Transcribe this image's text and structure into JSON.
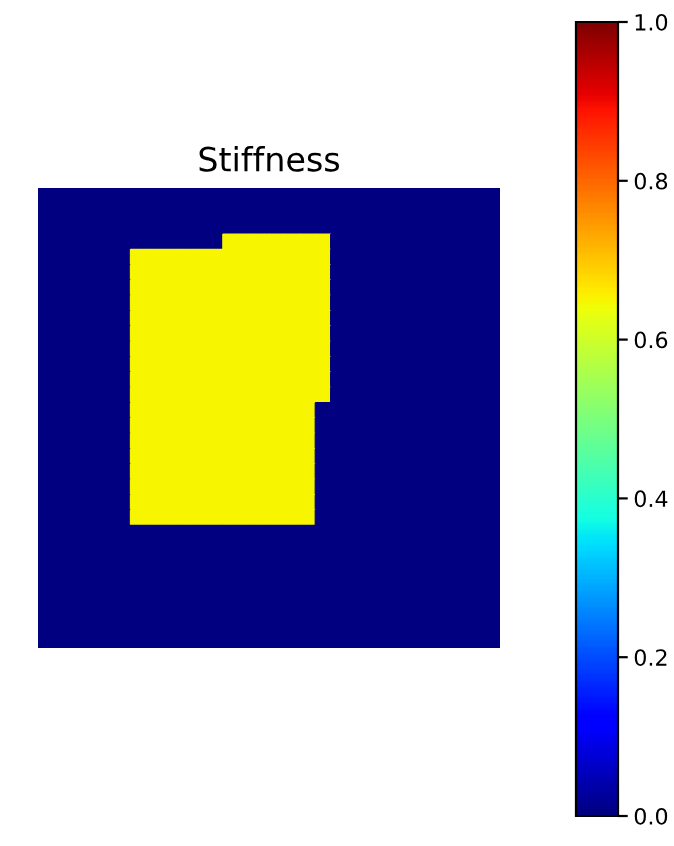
{
  "chart_data": {
    "type": "heatmap",
    "title": "Stiffness",
    "categories": [
      null,
      null,
      null,
      null,
      null,
      null,
      null,
      null,
      null,
      null,
      null,
      null,
      null,
      null,
      null,
      null,
      null,
      null,
      null,
      null,
      null,
      null,
      null,
      null,
      null,
      null,
      null,
      null,
      null,
      null
    ],
    "y_categories": [
      null,
      null,
      null,
      null,
      null,
      null,
      null,
      null,
      null,
      null,
      null,
      null,
      null,
      null,
      null,
      null,
      null,
      null,
      null,
      null,
      null,
      null,
      null,
      null,
      null,
      null,
      null,
      null,
      null,
      null
    ],
    "cells": [
      [
        0,
        0,
        0,
        0,
        0,
        0,
        0,
        0,
        0,
        0,
        0,
        0,
        0,
        0,
        0,
        0,
        0,
        0,
        0,
        0,
        0,
        0,
        0,
        0,
        0,
        0,
        0,
        0,
        0,
        0
      ],
      [
        0,
        0,
        0,
        0,
        0,
        0,
        0,
        0,
        0,
        0,
        0,
        0,
        0,
        0,
        0,
        0,
        0,
        0,
        0,
        0,
        0,
        0,
        0,
        0,
        0,
        0,
        0,
        0,
        0,
        0
      ],
      [
        0,
        0,
        0,
        0,
        0,
        0,
        0,
        0,
        0,
        0,
        0,
        0,
        0,
        0,
        0,
        0,
        0,
        0,
        0,
        0,
        0,
        0,
        0,
        0,
        0,
        0,
        0,
        0,
        0,
        0
      ],
      [
        0,
        0,
        0,
        0,
        0,
        0,
        0,
        0,
        0,
        0,
        0,
        0,
        0.65,
        0.65,
        0.65,
        0.65,
        0.65,
        0.65,
        0.65,
        0,
        0,
        0,
        0,
        0,
        0,
        0,
        0,
        0,
        0,
        0
      ],
      [
        0,
        0,
        0,
        0,
        0,
        0,
        0.65,
        0.65,
        0.65,
        0.65,
        0.65,
        0.65,
        0.65,
        0.65,
        0.65,
        0.65,
        0.65,
        0.65,
        0.65,
        0,
        0,
        0,
        0,
        0,
        0,
        0,
        0,
        0,
        0,
        0
      ],
      [
        0,
        0,
        0,
        0,
        0,
        0,
        0.65,
        0.65,
        0.65,
        0.65,
        0.65,
        0.65,
        0.65,
        0.65,
        0.65,
        0.65,
        0.65,
        0.65,
        0.65,
        0,
        0,
        0,
        0,
        0,
        0,
        0,
        0,
        0,
        0,
        0
      ],
      [
        0,
        0,
        0,
        0,
        0,
        0,
        0.65,
        0.65,
        0.65,
        0.65,
        0.65,
        0.65,
        0.65,
        0.65,
        0.65,
        0.65,
        0.65,
        0.65,
        0.65,
        0,
        0,
        0,
        0,
        0,
        0,
        0,
        0,
        0,
        0,
        0
      ],
      [
        0,
        0,
        0,
        0,
        0,
        0,
        0.65,
        0.65,
        0.65,
        0.65,
        0.65,
        0.65,
        0.65,
        0.65,
        0.65,
        0.65,
        0.65,
        0.65,
        0.65,
        0,
        0,
        0,
        0,
        0,
        0,
        0,
        0,
        0,
        0,
        0
      ],
      [
        0,
        0,
        0,
        0,
        0,
        0,
        0.65,
        0.65,
        0.65,
        0.65,
        0.65,
        0.65,
        0.65,
        0.65,
        0.65,
        0.65,
        0.65,
        0.65,
        0.65,
        0,
        0,
        0,
        0,
        0,
        0,
        0,
        0,
        0,
        0,
        0
      ],
      [
        0,
        0,
        0,
        0,
        0,
        0,
        0.65,
        0.65,
        0.65,
        0.65,
        0.65,
        0.65,
        0.65,
        0.65,
        0.65,
        0.65,
        0.65,
        0.65,
        0.65,
        0,
        0,
        0,
        0,
        0,
        0,
        0,
        0,
        0,
        0,
        0
      ],
      [
        0,
        0,
        0,
        0,
        0,
        0,
        0.65,
        0.65,
        0.65,
        0.65,
        0.65,
        0.65,
        0.65,
        0.65,
        0.65,
        0.65,
        0.65,
        0.65,
        0.65,
        0,
        0,
        0,
        0,
        0,
        0,
        0,
        0,
        0,
        0,
        0
      ],
      [
        0,
        0,
        0,
        0,
        0,
        0,
        0.65,
        0.65,
        0.65,
        0.65,
        0.65,
        0.65,
        0.65,
        0.65,
        0.65,
        0.65,
        0.65,
        0.65,
        0.65,
        0,
        0,
        0,
        0,
        0,
        0,
        0,
        0,
        0,
        0,
        0
      ],
      [
        0,
        0,
        0,
        0,
        0,
        0,
        0.65,
        0.65,
        0.65,
        0.65,
        0.65,
        0.65,
        0.65,
        0.65,
        0.65,
        0.65,
        0.65,
        0.65,
        0.65,
        0,
        0,
        0,
        0,
        0,
        0,
        0,
        0,
        0,
        0,
        0
      ],
      [
        0,
        0,
        0,
        0,
        0,
        0,
        0.65,
        0.65,
        0.65,
        0.65,
        0.65,
        0.65,
        0.65,
        0.65,
        0.65,
        0.65,
        0.65,
        0.65,
        0.65,
        0,
        0,
        0,
        0,
        0,
        0,
        0,
        0,
        0,
        0,
        0
      ],
      [
        0,
        0,
        0,
        0,
        0,
        0,
        0.65,
        0.65,
        0.65,
        0.65,
        0.65,
        0.65,
        0.65,
        0.65,
        0.65,
        0.65,
        0.65,
        0.65,
        0,
        0,
        0,
        0,
        0,
        0,
        0,
        0,
        0,
        0,
        0,
        0
      ],
      [
        0,
        0,
        0,
        0,
        0,
        0,
        0.65,
        0.65,
        0.65,
        0.65,
        0.65,
        0.65,
        0.65,
        0.65,
        0.65,
        0.65,
        0.65,
        0.65,
        0,
        0,
        0,
        0,
        0,
        0,
        0,
        0,
        0,
        0,
        0,
        0
      ],
      [
        0,
        0,
        0,
        0,
        0,
        0,
        0.65,
        0.65,
        0.65,
        0.65,
        0.65,
        0.65,
        0.65,
        0.65,
        0.65,
        0.65,
        0.65,
        0.65,
        0,
        0,
        0,
        0,
        0,
        0,
        0,
        0,
        0,
        0,
        0,
        0
      ],
      [
        0,
        0,
        0,
        0,
        0,
        0,
        0.65,
        0.65,
        0.65,
        0.65,
        0.65,
        0.65,
        0.65,
        0.65,
        0.65,
        0.65,
        0.65,
        0.65,
        0,
        0,
        0,
        0,
        0,
        0,
        0,
        0,
        0,
        0,
        0,
        0
      ],
      [
        0,
        0,
        0,
        0,
        0,
        0,
        0.65,
        0.65,
        0.65,
        0.65,
        0.65,
        0.65,
        0.65,
        0.65,
        0.65,
        0.65,
        0.65,
        0.65,
        0,
        0,
        0,
        0,
        0,
        0,
        0,
        0,
        0,
        0,
        0,
        0
      ],
      [
        0,
        0,
        0,
        0,
        0,
        0,
        0.65,
        0.65,
        0.65,
        0.65,
        0.65,
        0.65,
        0.65,
        0.65,
        0.65,
        0.65,
        0.65,
        0.65,
        0,
        0,
        0,
        0,
        0,
        0,
        0,
        0,
        0,
        0,
        0,
        0
      ],
      [
        0,
        0,
        0,
        0,
        0,
        0,
        0.65,
        0.65,
        0.65,
        0.65,
        0.65,
        0.65,
        0.65,
        0.65,
        0.65,
        0.65,
        0.65,
        0.65,
        0,
        0,
        0,
        0,
        0,
        0,
        0,
        0,
        0,
        0,
        0,
        0
      ],
      [
        0,
        0,
        0,
        0,
        0,
        0,
        0.65,
        0.65,
        0.65,
        0.65,
        0.65,
        0.65,
        0.65,
        0.65,
        0.65,
        0.65,
        0.65,
        0.65,
        0,
        0,
        0,
        0,
        0,
        0,
        0,
        0,
        0,
        0,
        0,
        0
      ],
      [
        0,
        0,
        0,
        0,
        0,
        0,
        0,
        0,
        0,
        0,
        0,
        0,
        0,
        0,
        0,
        0,
        0,
        0,
        0,
        0,
        0,
        0,
        0,
        0,
        0,
        0,
        0,
        0,
        0,
        0
      ],
      [
        0,
        0,
        0,
        0,
        0,
        0,
        0,
        0,
        0,
        0,
        0,
        0,
        0,
        0,
        0,
        0,
        0,
        0,
        0,
        0,
        0,
        0,
        0,
        0,
        0,
        0,
        0,
        0,
        0,
        0
      ],
      [
        0,
        0,
        0,
        0,
        0,
        0,
        0,
        0,
        0,
        0,
        0,
        0,
        0,
        0,
        0,
        0,
        0,
        0,
        0,
        0,
        0,
        0,
        0,
        0,
        0,
        0,
        0,
        0,
        0,
        0
      ],
      [
        0,
        0,
        0,
        0,
        0,
        0,
        0,
        0,
        0,
        0,
        0,
        0,
        0,
        0,
        0,
        0,
        0,
        0,
        0,
        0,
        0,
        0,
        0,
        0,
        0,
        0,
        0,
        0,
        0,
        0
      ],
      [
        0,
        0,
        0,
        0,
        0,
        0,
        0,
        0,
        0,
        0,
        0,
        0,
        0,
        0,
        0,
        0,
        0,
        0,
        0,
        0,
        0,
        0,
        0,
        0,
        0,
        0,
        0,
        0,
        0,
        0
      ],
      [
        0,
        0,
        0,
        0,
        0,
        0,
        0,
        0,
        0,
        0,
        0,
        0,
        0,
        0,
        0,
        0,
        0,
        0,
        0,
        0,
        0,
        0,
        0,
        0,
        0,
        0,
        0,
        0,
        0,
        0
      ],
      [
        0,
        0,
        0,
        0,
        0,
        0,
        0,
        0,
        0,
        0,
        0,
        0,
        0,
        0,
        0,
        0,
        0,
        0,
        0,
        0,
        0,
        0,
        0,
        0,
        0,
        0,
        0,
        0,
        0,
        0
      ],
      [
        0,
        0,
        0,
        0,
        0,
        0,
        0,
        0,
        0,
        0,
        0,
        0,
        0,
        0,
        0,
        0,
        0,
        0,
        0,
        0,
        0,
        0,
        0,
        0,
        0,
        0,
        0,
        0,
        0,
        0
      ]
    ],
    "clim": [
      0,
      1
    ],
    "cticks": [
      {
        "value": 0,
        "label": "0.0"
      },
      0.2,
      0.4,
      0.6,
      0.8,
      {
        "value": 1,
        "label": "1.0"
      }
    ],
    "tick_labels": false
  }
}
